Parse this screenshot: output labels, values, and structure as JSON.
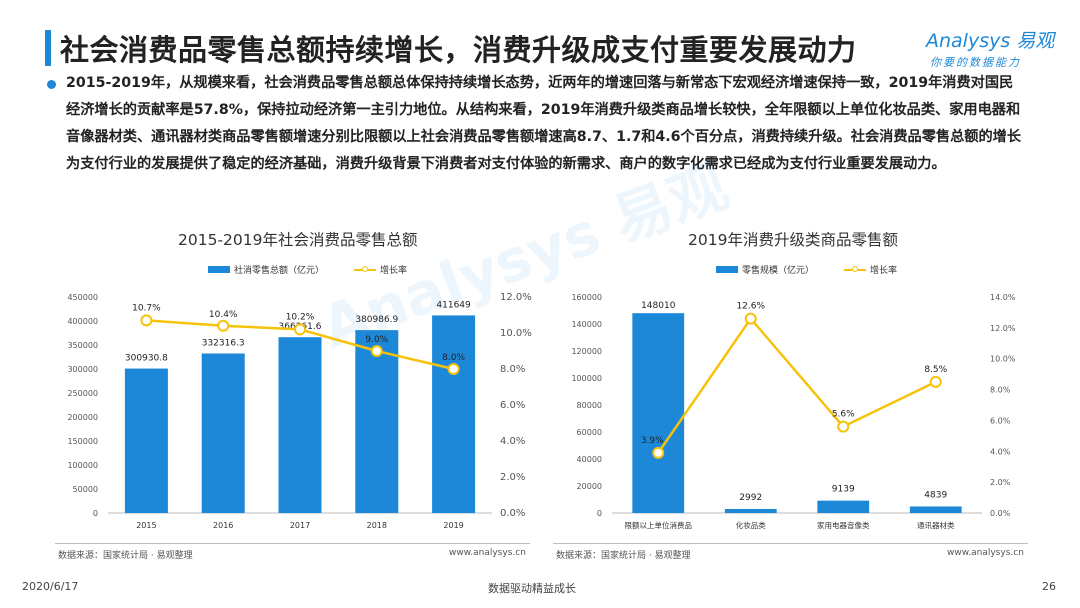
{
  "header": {
    "title": "社会消费品零售总额持续增长，消费升级成支付重要发展动力",
    "logo_main": "Analysys 易观",
    "logo_sub": "你要的数据能力"
  },
  "body_text": "2015-2019年，从规模来看，社会消费品零售总额总体保持持续增长态势，近两年的增速回落与新常态下宏观经济增速保持一致，2019年消费对国民经济增长的贡献率是57.8%，保持拉动经济第一主引力地位。从结构来看，2019年消费升级类商品增长较快，全年限额以上单位化妆品类、家用电器和音像器材类、通讯器材类商品零售额增速分别比限额以上社会消费品零售额增速高8.7、1.7和4.6个百分点，消费持续升级。社会消费品零售总额的增长为支付行业的发展提供了稳定的经济基础，消费升级背景下消费者对支付体验的新需求、商户的数字化需求已经成为支付行业重要发展动力。",
  "watermark": "Analysys 易观",
  "chart_data": [
    {
      "type": "bar",
      "title": "2015-2019年社会消费品零售总额",
      "categories": [
        "2015",
        "2016",
        "2017",
        "2018",
        "2019"
      ],
      "series": [
        {
          "name": "社消零售总额（亿元）",
          "axis": "left",
          "type": "bar",
          "values": [
            300930.8,
            332316.3,
            366261.6,
            380986.9,
            411649
          ],
          "labels": [
            "300930.8",
            "332316.3",
            "366261.6",
            "380986.9",
            "411649"
          ]
        },
        {
          "name": "增长率",
          "axis": "right",
          "type": "line",
          "values": [
            10.7,
            10.4,
            10.2,
            9.0,
            8.0
          ],
          "labels": [
            "10.7%",
            "10.4%",
            "10.2%",
            "9.0%",
            "8.0%"
          ]
        }
      ],
      "left_ylim": [
        0,
        450000
      ],
      "left_ticks": [
        "0",
        "50000",
        "100000",
        "150000",
        "200000",
        "250000",
        "300000",
        "350000",
        "400000",
        "450000"
      ],
      "right_ylim": [
        0,
        12
      ],
      "right_ticks": [
        "0.0%",
        "2.0%",
        "4.0%",
        "6.0%",
        "8.0%",
        "10.0%",
        "12.0%"
      ],
      "legend": "top-left",
      "grid": false,
      "colors": {
        "bar": "#1e88d8",
        "line": "#f7c20a"
      }
    },
    {
      "type": "bar",
      "title": "2019年消费升级类商品零售额",
      "categories": [
        "限额以上单位消费品",
        "化妆品类",
        "家用电器音像类",
        "通讯器材类"
      ],
      "series": [
        {
          "name": "零售规模（亿元）",
          "axis": "left",
          "type": "bar",
          "values": [
            148010,
            2992,
            9139,
            4839
          ],
          "labels": [
            "148010",
            "2992",
            "9139",
            "4839"
          ]
        },
        {
          "name": "增长率",
          "axis": "right",
          "type": "line",
          "values": [
            3.9,
            12.6,
            5.6,
            8.5
          ],
          "labels": [
            "3.9%",
            "12.6%",
            "5.6%",
            "8.5%"
          ]
        }
      ],
      "left_ylim": [
        0,
        160000
      ],
      "left_ticks": [
        "0",
        "20000",
        "40000",
        "60000",
        "80000",
        "100000",
        "120000",
        "140000",
        "160000"
      ],
      "right_ylim": [
        0,
        14
      ],
      "right_ticks": [
        "0.0%",
        "2.0%",
        "4.0%",
        "6.0%",
        "8.0%",
        "10.0%",
        "12.0%",
        "14.0%"
      ],
      "legend": "top-left",
      "grid": false,
      "colors": {
        "bar": "#1e88d8",
        "line": "#f7c20a"
      }
    }
  ],
  "footer": {
    "source_left": "数据来源：国家统计局 · 易观整理",
    "site_left": "www.analysys.cn",
    "source_right": "数据来源：国家统计局 · 易观整理",
    "site_right": "www.analysys.cn",
    "date": "2020/6/17",
    "slogan": "数据驱动精益成长",
    "page_number": "26"
  }
}
